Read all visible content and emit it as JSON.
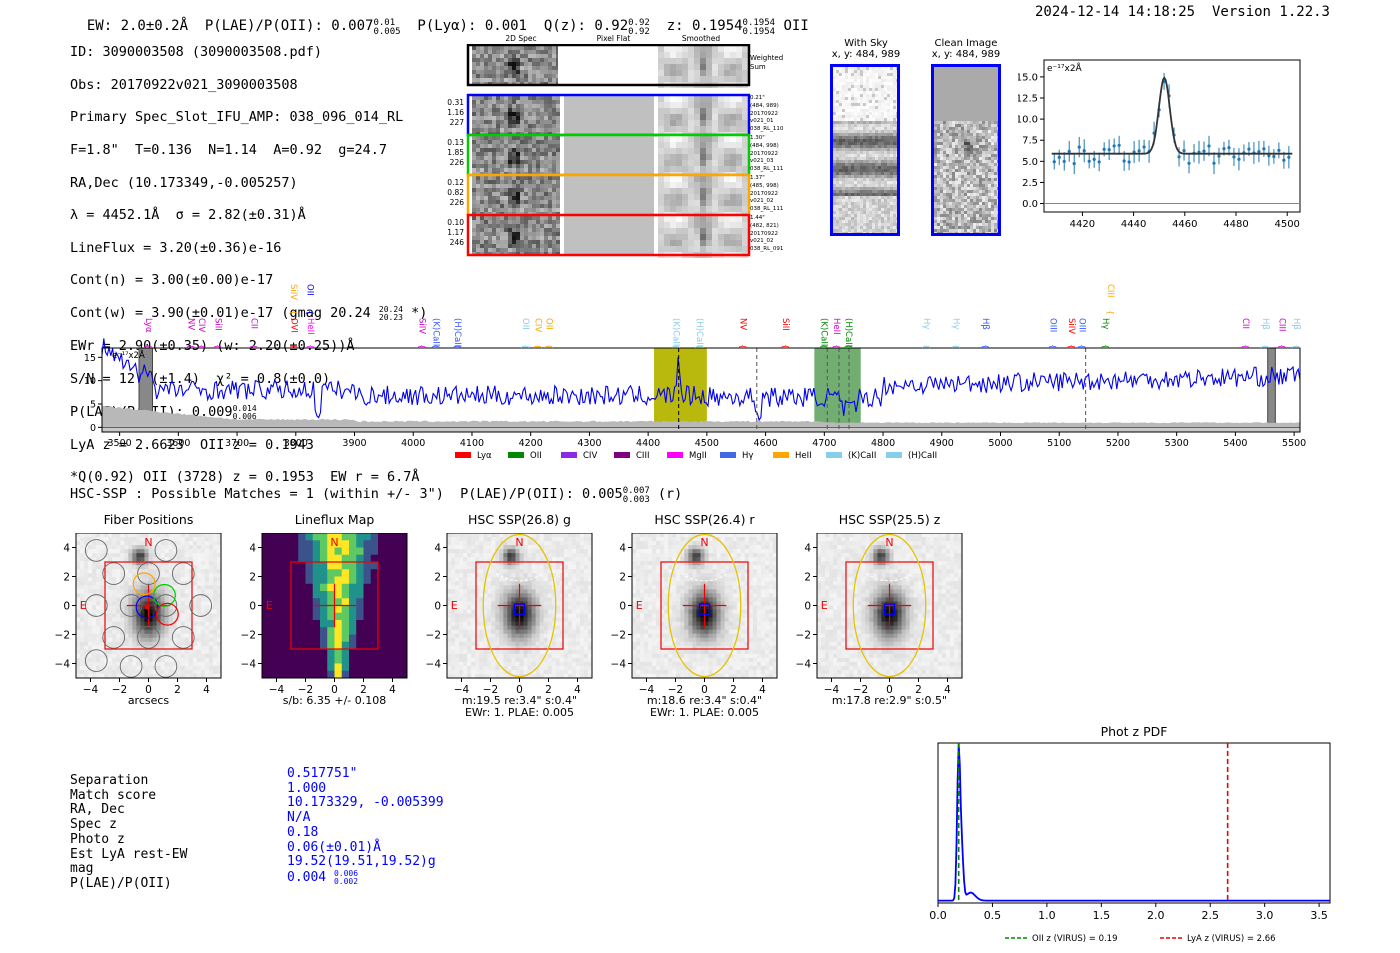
{
  "header": {
    "ew": "EW: 2.0±0.2Å",
    "plae_label": "P(LAE)/P(OII): 0.007",
    "plae_hi": "0.01",
    "plae_lo": "0.005",
    "plya": "P(Lyα): 0.001",
    "qz_label": "Q(z): 0.92",
    "qz_hi": "0.92",
    "qz_lo": "0.92",
    "z_label": "z: 0.1954",
    "z_hi": "0.1954",
    "z_lo": "0.1954",
    "z_line": "OII",
    "timestamp": "2024-12-14 14:18:25",
    "version": "Version 1.22.3"
  },
  "info": {
    "id": "ID: 3090003508 (3090003508.pdf)",
    "obs": "Obs: 20170922v021_3090003508",
    "primary": "Primary Spec_Slot_IFU_AMP: 038_096_014_RL",
    "params": "F=1.8\"  T=0.136  N=1.14  A=0.92  g=24.7",
    "radec": "RA,Dec (10.173349,-0.005257)",
    "lambda": "λ = 4452.1Å  σ = 2.82(±0.31)Å",
    "lineflux": "LineFlux = 3.20(±0.36)e-16",
    "contn": "Cont(n) = 3.00(±0.00)e-17",
    "contw": "Cont(w) = 3.90(±0.01)e-17 (gmag 20.24",
    "contw_hi": "20.24",
    "contw_lo": "20.23",
    "contw_end": "*)",
    "ewr": "EWr = 2.90(±0.35) (w: 2.20(±0.25))Å",
    "sn": "S/N = 12.2(±1.4)  χ² = 0.8(±0.0)",
    "plae": "P(LAE)/P(OII): 0.009",
    "plae_hi": "0.014",
    "plae_lo": "0.006",
    "lya": "LyA z = 2.6623  OII z = 0.1943",
    "q": "*Q(0.92) OII (3728) z = 0.1953  EW r = 6.7Å"
  },
  "cutouts": {
    "col_headers": [
      "2D Spec",
      "Pixel Flat",
      "Smoothed"
    ],
    "weighted_label": "Weighted Sum",
    "rows": [
      {
        "left": [
          "0.31",
          "1.16",
          "227"
        ],
        "right": [
          "0.21\"",
          "(484, 989)",
          "20170922",
          "v021_01",
          "038_RL_110"
        ],
        "color": "#0000ff"
      },
      {
        "left": [
          "0.13",
          "1.85",
          "226"
        ],
        "right": [
          "1.30\"",
          "(484, 998)",
          "20170922",
          "v021_03",
          "038_RL_111"
        ],
        "color": "#00cc00"
      },
      {
        "left": [
          "0.12",
          "0.82",
          "226"
        ],
        "right": [
          "1.37\"",
          "(485, 998)",
          "20170922",
          "v021_02",
          "038_RL_111"
        ],
        "color": "#ffa500"
      },
      {
        "left": [
          "0.10",
          "1.17",
          "246"
        ],
        "right": [
          "1.44\"",
          "(482, 821)",
          "20170922",
          "v021_02",
          "038_RL_091"
        ],
        "color": "#ff0000"
      }
    ]
  },
  "sky_panels": [
    {
      "title": "With Sky",
      "sub": "x, y: 484, 989"
    },
    {
      "title": "Clean Image",
      "sub": "x, y: 484, 989"
    }
  ],
  "zoom_spec": {
    "unit": "e⁻¹⁷x2Å",
    "xticks": [
      "4420",
      "4440",
      "4460",
      "4480",
      "4500"
    ],
    "yticks": [
      "15.0",
      "12.5",
      "10.0",
      "7.5",
      "5.0",
      "2.5",
      "0.0"
    ]
  },
  "chart_data": {
    "type": "line",
    "title": "",
    "unit_label": "e⁻¹⁷x2Å",
    "xlim": [
      3470,
      5510
    ],
    "ylim": [
      -1,
      17
    ],
    "xticks": [
      "3500",
      "3600",
      "3700",
      "3800",
      "3900",
      "4000",
      "4100",
      "4200",
      "4300",
      "4400",
      "4500",
      "4600",
      "4700",
      "4800",
      "4900",
      "5000",
      "5100",
      "5200",
      "5300",
      "5400",
      "5500"
    ],
    "yticks": [
      "15",
      "10",
      "5",
      "0"
    ],
    "line_labels": [
      {
        "text": "Lyα",
        "x": 3550,
        "color": "#cc00cc"
      },
      {
        "text": "NV",
        "x": 3622,
        "color": "#cc00cc"
      },
      {
        "text": "CIV",
        "x": 3640,
        "color": "#cc00cc"
      },
      {
        "text": "SiII",
        "x": 3668,
        "color": "#cc00cc"
      },
      {
        "text": "CII",
        "x": 3730,
        "color": "#cc00cc"
      },
      {
        "text": "SiIV",
        "x": 3797,
        "color": "#ffa500"
      },
      {
        "text": "OVI",
        "x": 3798,
        "color": "#ff0000"
      },
      {
        "text": "OII",
        "x": 3825,
        "color": "#0000ff"
      },
      {
        "text": "HeII",
        "x": 3826,
        "color": "#ff00ff"
      },
      {
        "text": "SiIV",
        "x": 4016,
        "color": "#cc00cc"
      },
      {
        "text": "(K)CaII",
        "x": 4040,
        "color": "#3355ff"
      },
      {
        "text": "(H)CaII",
        "x": 4076,
        "color": "#3355ff"
      },
      {
        "text": "OII",
        "x": 4192,
        "color": "#87ceeb"
      },
      {
        "text": "CIV",
        "x": 4213,
        "color": "#ffa500"
      },
      {
        "text": "OII",
        "x": 4232,
        "color": "#ffa500"
      },
      {
        "text": "(K)CaII",
        "x": 4448,
        "color": "#87ceeb"
      },
      {
        "text": "(H)CaII",
        "x": 4488,
        "color": "#87ceeb"
      },
      {
        "text": "NV",
        "x": 4562,
        "color": "#ff0000"
      },
      {
        "text": "SiII",
        "x": 4635,
        "color": "#ff0000"
      },
      {
        "text": "(K)CaII",
        "x": 4700,
        "color": "#008800"
      },
      {
        "text": "HeII",
        "x": 4722,
        "color": "#cc00cc"
      },
      {
        "text": "(H)CaII",
        "x": 4742,
        "color": "#008800"
      },
      {
        "text": "Hγ",
        "x": 4875,
        "color": "#87ceeb"
      },
      {
        "text": "Hγ",
        "x": 4925,
        "color": "#87ceeb"
      },
      {
        "text": "Hβ",
        "x": 4975,
        "color": "#3355ff"
      },
      {
        "text": "OIII",
        "x": 5090,
        "color": "#3355ff"
      },
      {
        "text": "SiIV",
        "x": 5122,
        "color": "#ff0000"
      },
      {
        "text": "OIII",
        "x": 5140,
        "color": "#3355ff"
      },
      {
        "text": "Hγ",
        "x": 5180,
        "color": "#008800"
      },
      {
        "text": "CIII",
        "x": 5188,
        "color": "#ffa500"
      },
      {
        "text": "CII",
        "x": 5418,
        "color": "#cc00cc"
      },
      {
        "text": "Hβ",
        "x": 5452,
        "color": "#87ceeb"
      },
      {
        "text": "CIII",
        "x": 5480,
        "color": "#cc00cc"
      },
      {
        "text": "Hβ",
        "x": 5505,
        "color": "#87ceeb"
      }
    ],
    "bands": [
      {
        "x0": 4410,
        "x1": 4500,
        "color": "#b5b500"
      },
      {
        "x0": 4683,
        "x1": 4762,
        "color": "#6aaa6a"
      }
    ],
    "vlines": [
      4452,
      4585,
      4705,
      4725,
      4742,
      5145
    ],
    "legend": [
      {
        "name": "Lyα",
        "color": "#ff0000"
      },
      {
        "name": "OII",
        "color": "#008800"
      },
      {
        "name": "CIV",
        "color": "#8a2be2"
      },
      {
        "name": "CIII",
        "color": "#800080"
      },
      {
        "name": "MgII",
        "color": "#ff00ff"
      },
      {
        "name": "Hγ",
        "color": "#4169e1"
      },
      {
        "name": "HeII",
        "color": "#ffa500"
      },
      {
        "name": "(K)CaII",
        "color": "#87ceeb"
      },
      {
        "name": "(H)CaII",
        "color": "#87ceeb"
      }
    ]
  },
  "hsc": {
    "title": "HSC-SSP : Possible Matches = 1 (within +/- 3\")  P(LAE)/P(OII): 0.005",
    "title_hi": "0.007",
    "title_lo": "0.003",
    "title_end": "(r)",
    "panels": [
      {
        "title": "Fiber Positions",
        "sub1": "arcsecs",
        "sub2": ""
      },
      {
        "title": "Lineflux Map",
        "sub1": "s/b: 6.35 +/- 0.108",
        "sub2": ""
      },
      {
        "title": "HSC SSP(26.8) g",
        "sub1": "m:19.5  re:3.4\"  s:0.4\"",
        "sub2": "EWr: 1. PLAE: 0.005"
      },
      {
        "title": "HSC SSP(26.4) r",
        "sub1": "m:18.6  re:3.4\"  s:0.4\"",
        "sub2": "EWr: 1. PLAE: 0.005"
      },
      {
        "title": "HSC SSP(25.5) z",
        "sub1": "m:17.8  re:2.9\"  s:0.5\"",
        "sub2": ""
      }
    ],
    "axis_ticks": [
      "4",
      "2",
      "0",
      "−2",
      "−4"
    ],
    "xaxis_ticks": [
      "−4",
      "−2",
      "0",
      "2",
      "4"
    ],
    "n": "N",
    "e": "E"
  },
  "match": {
    "labels": [
      "Separation",
      "Match score",
      "RA, Dec",
      "Spec z",
      "Photo z",
      "Est LyA rest-EW",
      "mag",
      "P(LAE)/P(OII)"
    ],
    "values": [
      "0.517751\"",
      "1.000",
      "10.173329, -0.005399",
      "N/A",
      "0.18",
      "0.06(±0.01)Å",
      "19.52(19.51,19.52)g",
      "0.004"
    ],
    "plae_hi": "0.006",
    "plae_lo": "0.002"
  },
  "photz": {
    "title": "Phot z PDF",
    "xticks": [
      "0.0",
      "0.5",
      "1.0",
      "1.5",
      "2.0",
      "2.5",
      "3.0",
      "3.5"
    ],
    "xlim": [
      0,
      3.6
    ],
    "oii_z": 0.19,
    "lya_z": 2.66,
    "legend_oii": "OII z (VIRUS) = 0.19",
    "legend_lya": "LyA z (VIRUS) = 2.66"
  }
}
